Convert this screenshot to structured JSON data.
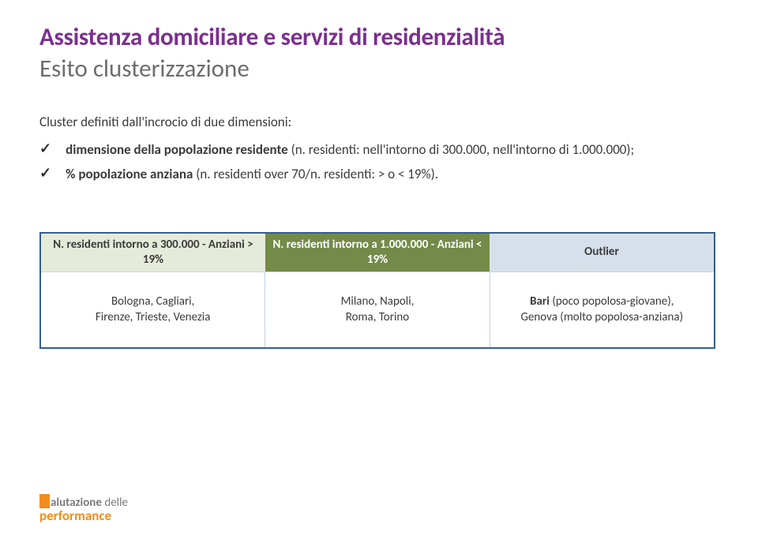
{
  "colors": {
    "title": "#7c2f8f",
    "subtitle": "#6d6d6d",
    "text": "#3b3b3b",
    "check": "#2f2f2f",
    "tableBorder": "#355f8f",
    "hdrLeftBg": "#e5ebd9",
    "hdrMidBg": "#748a49",
    "hdrMidText": "#ffffff",
    "hdrRightBg": "#d7e0ea",
    "cellDivider": "#c7d2df",
    "logoOrange": "#f28c1f",
    "logoGrey": "#7a7a7a"
  },
  "title": "Assistenza domiciliare e servizi di residenzialità",
  "subtitle": "Esito clusterizzazione",
  "intro": "Cluster definiti dall'incrocio di due dimensioni:",
  "bullets": [
    {
      "bold": "dimensione della popolazione residente",
      "rest": " (n. residenti: nell'intorno di 300.000, nell'intorno di 1.000.000);"
    },
    {
      "bold": "% popolazione anziana",
      "rest": " (n. residenti over 70/n. residenti: > o < 19%)."
    }
  ],
  "table": {
    "headers": [
      "N. residenti intorno a 300.000 - Anziani > 19%",
      "N. residenti intorno a 1.000.000 - Anziani < 19%",
      "Outlier"
    ],
    "rows": [
      [
        {
          "plain": "Bologna, Cagliari,\nFirenze, Trieste, Venezia"
        },
        {
          "plain": "Milano, Napoli,\nRoma, Torino"
        },
        {
          "boldrun": "Bari",
          "afterbold": " (poco popolosa-giovane),\nGenova (molto popolosa-anziana)"
        }
      ]
    ]
  },
  "logo": {
    "line1a": "alutazione",
    "line1b": " delle",
    "line2": "performance"
  }
}
